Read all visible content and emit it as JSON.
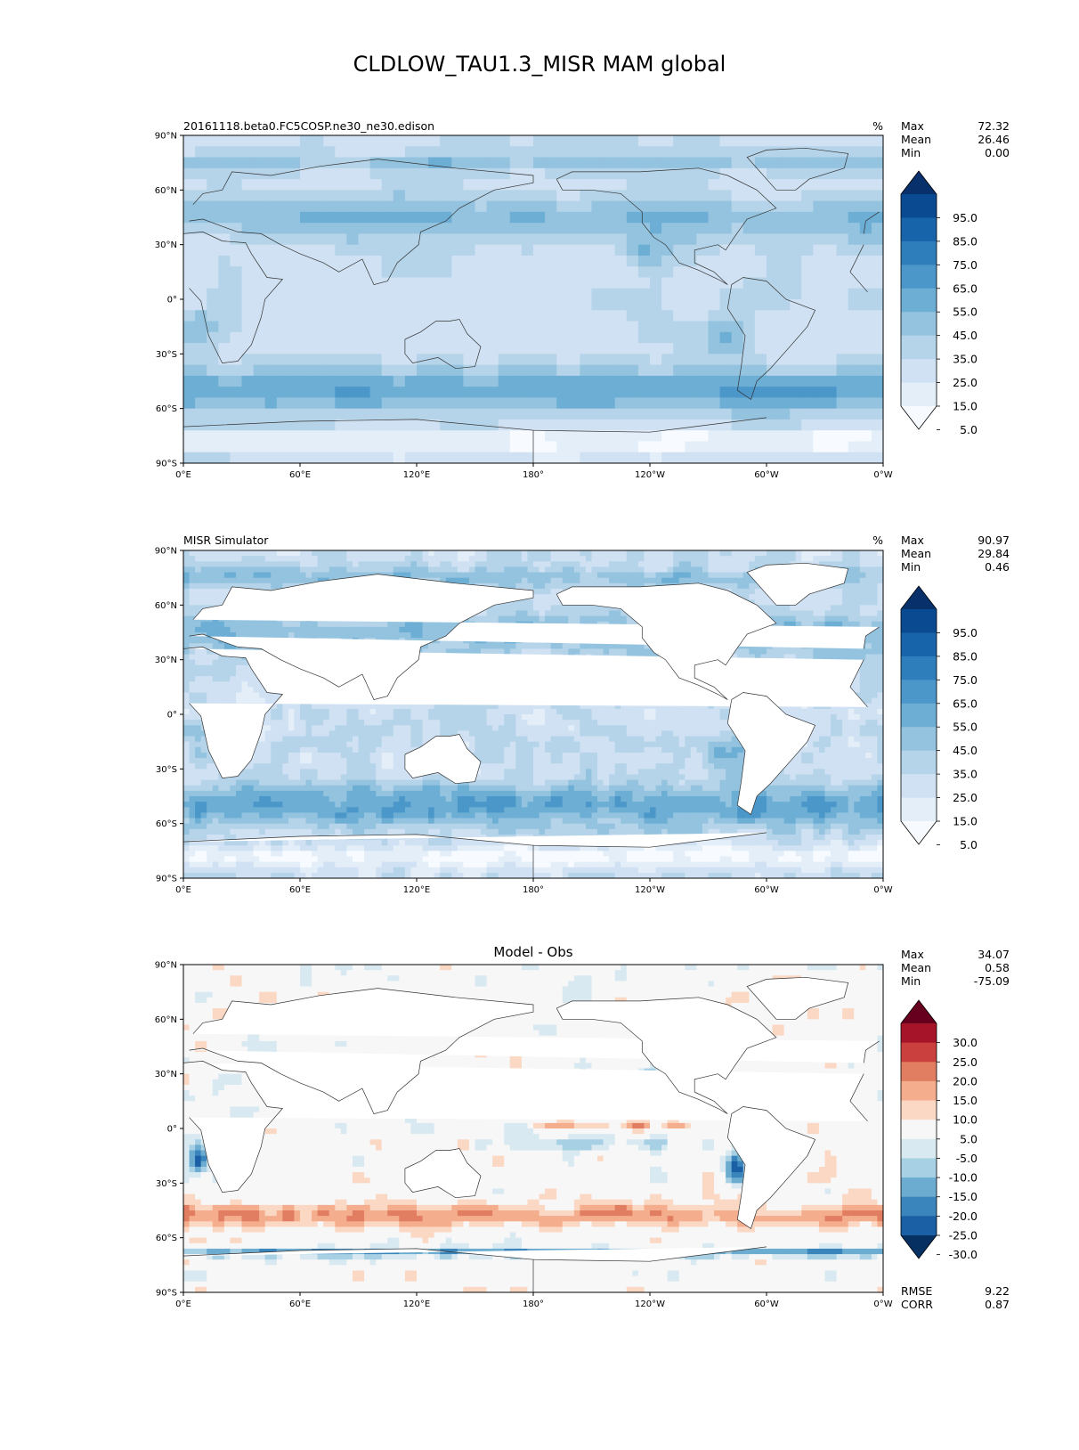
{
  "suptitle": "CLDLOW_TAU1.3_MISR MAM global",
  "chart_data": [
    {
      "type": "heatmap",
      "title_left": "20161118.beta0.FC5COSP.ne30_ne30.edison",
      "units": "%",
      "stats": [
        {
          "label": "Max",
          "value": "72.32"
        },
        {
          "label": "Mean",
          "value": "26.46"
        },
        {
          "label": "Min",
          "value": "0.00"
        }
      ],
      "xticks": [
        "0°E",
        "60°E",
        "120°E",
        "180°",
        "120°W",
        "60°W",
        "0°W"
      ],
      "yticks": [
        "90°N",
        "60°N",
        "30°N",
        "0°",
        "30°S",
        "60°S",
        "90°S"
      ],
      "xlim": [
        0,
        360
      ],
      "ylim": [
        -90,
        90
      ],
      "colorbar": {
        "labels": [
          "95.0",
          "85.0",
          "75.0",
          "65.0",
          "55.0",
          "45.0",
          "35.0",
          "25.0",
          "15.0",
          "5.0"
        ],
        "colors": [
          "#f7fbff",
          "#e3eef9",
          "#cfe1f2",
          "#b5d4e9",
          "#93c3df",
          "#6daed5",
          "#4b97c9",
          "#2f7ebc",
          "#1864aa",
          "#0a4a90",
          "#08306b"
        ],
        "extend": "both"
      }
    },
    {
      "type": "heatmap",
      "title_left": "MISR Simulator",
      "units": "%",
      "stats": [
        {
          "label": "Max",
          "value": "90.97"
        },
        {
          "label": "Mean",
          "value": "29.84"
        },
        {
          "label": "Min",
          "value": "0.46"
        }
      ],
      "xticks": [
        "0°E",
        "60°E",
        "120°E",
        "180°",
        "120°W",
        "60°W",
        "0°W"
      ],
      "yticks": [
        "90°N",
        "60°N",
        "30°N",
        "0°",
        "30°S",
        "60°S",
        "90°S"
      ],
      "xlim": [
        0,
        360
      ],
      "ylim": [
        -90,
        90
      ],
      "colorbar": {
        "labels": [
          "95.0",
          "85.0",
          "75.0",
          "65.0",
          "55.0",
          "45.0",
          "35.0",
          "25.0",
          "15.0",
          "5.0"
        ],
        "colors": [
          "#f7fbff",
          "#e3eef9",
          "#cfe1f2",
          "#b5d4e9",
          "#93c3df",
          "#6daed5",
          "#4b97c9",
          "#2f7ebc",
          "#1864aa",
          "#0a4a90",
          "#08306b"
        ],
        "extend": "both"
      }
    },
    {
      "type": "heatmap",
      "title_center": "Model - Obs",
      "stats": [
        {
          "label": "Max",
          "value": "34.07"
        },
        {
          "label": "Mean",
          "value": "0.58"
        },
        {
          "label": "Min",
          "value": "-75.09"
        }
      ],
      "bottom_stats": [
        {
          "label": "RMSE",
          "value": "9.22"
        },
        {
          "label": "CORR",
          "value": "0.87"
        }
      ],
      "xticks": [
        "0°E",
        "60°E",
        "120°E",
        "180°",
        "120°W",
        "60°W",
        "0°W"
      ],
      "yticks": [
        "90°N",
        "60°N",
        "30°N",
        "0°",
        "30°S",
        "60°S",
        "90°S"
      ],
      "xlim": [
        0,
        360
      ],
      "ylim": [
        -90,
        90
      ],
      "colorbar": {
        "labels": [
          "30.0",
          "25.0",
          "20.0",
          "15.0",
          "10.0",
          "5.0",
          "-5.0",
          "-10.0",
          "-15.0",
          "-20.0",
          "-25.0",
          "-30.0"
        ],
        "colors": [
          "#67001f",
          "#a51429",
          "#c9403f",
          "#e17d61",
          "#f4ad8d",
          "#fbd8c4",
          "#f7f7f7",
          "#d8e9f1",
          "#a7d0e4",
          "#6bacd0",
          "#3a85bc",
          "#1b5fa4",
          "#053061"
        ],
        "extend": "both"
      }
    }
  ]
}
